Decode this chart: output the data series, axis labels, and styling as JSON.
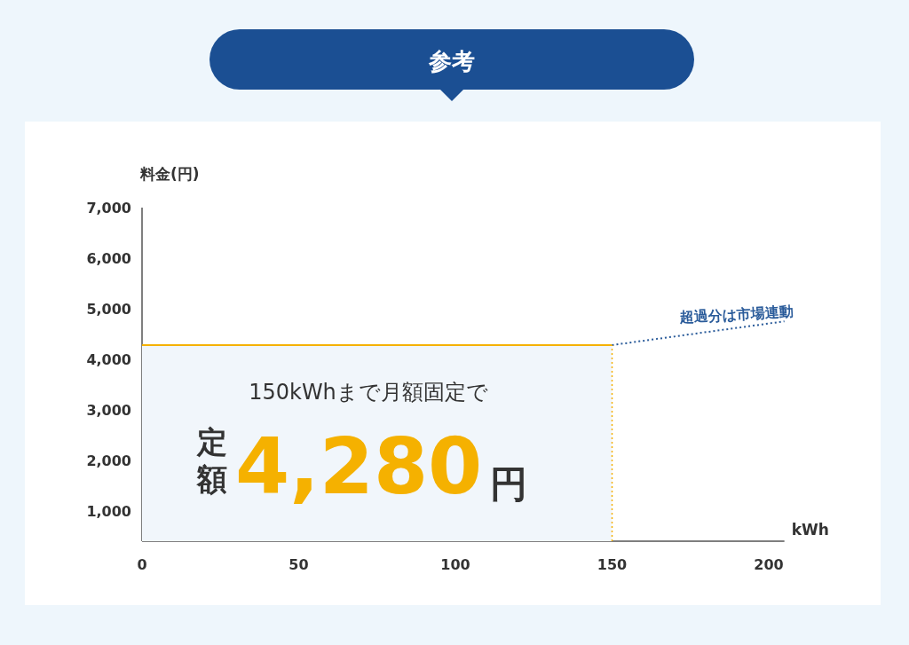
{
  "chart_data": {
    "type": "line",
    "title": "参考",
    "xlabel": "kWh",
    "ylabel": "料金(円)",
    "x": [
      0,
      150
    ],
    "xlim": [
      0,
      205
    ],
    "xticks": [
      0,
      50,
      100,
      150,
      200
    ],
    "ylim": [
      400,
      7000
    ],
    "yticks": [
      {
        "value": 1000,
        "label": "1,000"
      },
      {
        "value": 2000,
        "label": "2,000"
      },
      {
        "value": 3000,
        "label": "3,000"
      },
      {
        "value": 4000,
        "label": "4,000"
      },
      {
        "value": 5000,
        "label": "5,000"
      },
      {
        "value": 6000,
        "label": "6,000"
      },
      {
        "value": 7000,
        "label": "7,000"
      }
    ],
    "series": [
      {
        "type": "area",
        "color": "#f5b100",
        "values": [
          4280,
          4280
        ],
        "line_style": "solid"
      },
      {
        "x": [
          150,
          205
        ],
        "values": [
          4280,
          4750
        ],
        "color": "#2a5b9a",
        "line_style": "dotted"
      }
    ],
    "ref_lines": [
      {
        "axis": "x",
        "value": 150,
        "color": "#f5b100",
        "line_style": "dotted"
      }
    ],
    "annotations": [
      "150kWhまで月額固定で",
      "定額",
      "4,280",
      "円",
      {
        "text": "超過分は市場連動",
        "x": 190,
        "y": 4650
      }
    ],
    "grid": false
  }
}
